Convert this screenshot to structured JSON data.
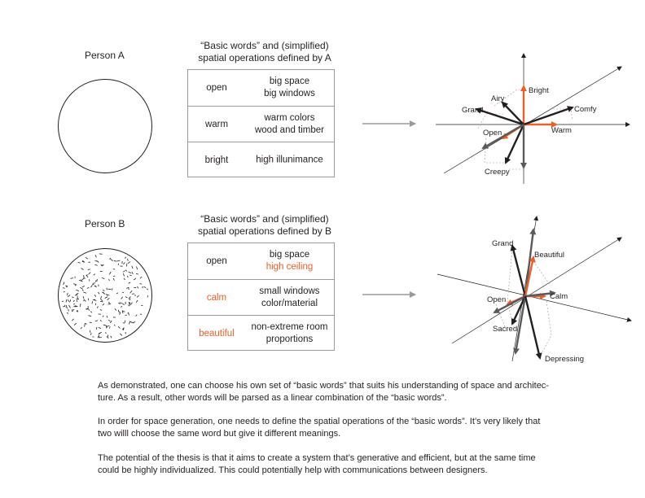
{
  "accent_color": "#e8602c",
  "person_a": {
    "label": "Person A",
    "table_title_line1": "“Basic words” and (simplified)",
    "table_title_line2": "spatial operations defined by A",
    "rows": [
      {
        "word": "open",
        "ops_line1": "big space",
        "ops_line2": "big windows"
      },
      {
        "word": "warm",
        "ops_line1": "warm colors",
        "ops_line2": "wood and timber"
      },
      {
        "word": "bright",
        "ops_line1": "high illunimance",
        "ops_line2": ""
      }
    ],
    "diagram_labels": {
      "bright": "Bright",
      "airy": "Airy",
      "grand": "Grand",
      "comfy": "Comfy",
      "open": "Open",
      "warm": "Warm",
      "creepy": "Creepy"
    }
  },
  "person_b": {
    "label": "Person B",
    "table_title_line1": "“Basic words” and (simplified)",
    "table_title_line2": "spatial operations defined by B",
    "rows": [
      {
        "word": "open",
        "ops_line1": "big space",
        "ops_line2": "high ceiling",
        "accent_word": false,
        "accent_ops2": true
      },
      {
        "word": "calm",
        "ops_line1": "small windows",
        "ops_line2": "color/material",
        "accent_word": true,
        "accent_ops2": false
      },
      {
        "word": "beautiful",
        "ops_line1": "non-extreme room",
        "ops_line2": "proportions",
        "accent_word": true,
        "accent_ops2": false
      }
    ],
    "diagram_labels": {
      "grand": "Grand",
      "beautiful": "Beautiful",
      "open": "Open",
      "calm": "Calm",
      "sacred": "Sacred",
      "depressing": "Depressing"
    }
  },
  "paragraphs": {
    "p1_line1": "As demonstrated, one can choose his own set of “basic words” that suits his understanding of space and architec-",
    "p1_line2": "ture. As a result, other words will be parsed as a linear combination of the “basic words”.",
    "p2_line1": "In order for space generation, one needs to define the spatial operations of the “basic words”. It’s very likely that",
    "p2_line2": "two willl choose the same word but give it different meanings.",
    "p3_line1": "The potential of the thesis is that it aims to create a system that’s generative and efficient, but at the same time",
    "p3_line2": "could be highly individualized. This could potentially help with communications between designers."
  }
}
